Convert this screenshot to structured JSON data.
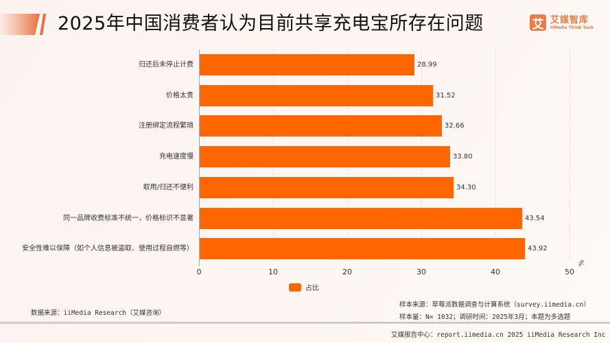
{
  "header": {
    "title": "2025年中国消费者认为目前共享充电宝所存在问题",
    "logo_mark": "艾",
    "logo_cn": "艾媒智库",
    "logo_en": "iiMedia Think Tank"
  },
  "chart_data": {
    "type": "bar",
    "orientation": "horizontal",
    "title": "2025年中国消费者认为目前共享充电宝所存在问题",
    "categories": [
      "归还后未停止计费",
      "价格太贵",
      "注册绑定流程繁琐",
      "充电速度慢",
      "取用/归还不便利",
      "同一品牌收费标准不统一，价格标识不显著",
      "安全性难以保障（如个人信息被盗取、使用过程自燃等）"
    ],
    "series": [
      {
        "name": "占比",
        "color": "#ff6600",
        "values": [
          28.99,
          31.52,
          32.66,
          33.8,
          34.3,
          43.54,
          43.92
        ]
      }
    ],
    "value_labels": [
      "28.99",
      "31.52",
      "32.66",
      "33.80",
      "34.30",
      "43.54",
      "43.92"
    ],
    "xlabel": "%",
    "ylabel": "",
    "xlim": [
      0,
      50
    ],
    "xticks": [
      "0",
      "10",
      "20",
      "30",
      "40",
      "50"
    ],
    "grid": true,
    "legend_position": "bottom"
  },
  "axis": {
    "unit": "%"
  },
  "legend": {
    "label": "占比"
  },
  "notes": {
    "source": "数据来源：iiMedia Research（艾媒咨询）",
    "sample_source": "样本来源：草莓派数据调查与计算系统（survey.iimedia.cn）",
    "sample_size": "样本量：N= 1032；调研时间：2025年3月；本题为多选题"
  },
  "footer": {
    "text": "艾媒报告中心：report.iimedia.cn   2025 iiMedia Research Inc"
  }
}
